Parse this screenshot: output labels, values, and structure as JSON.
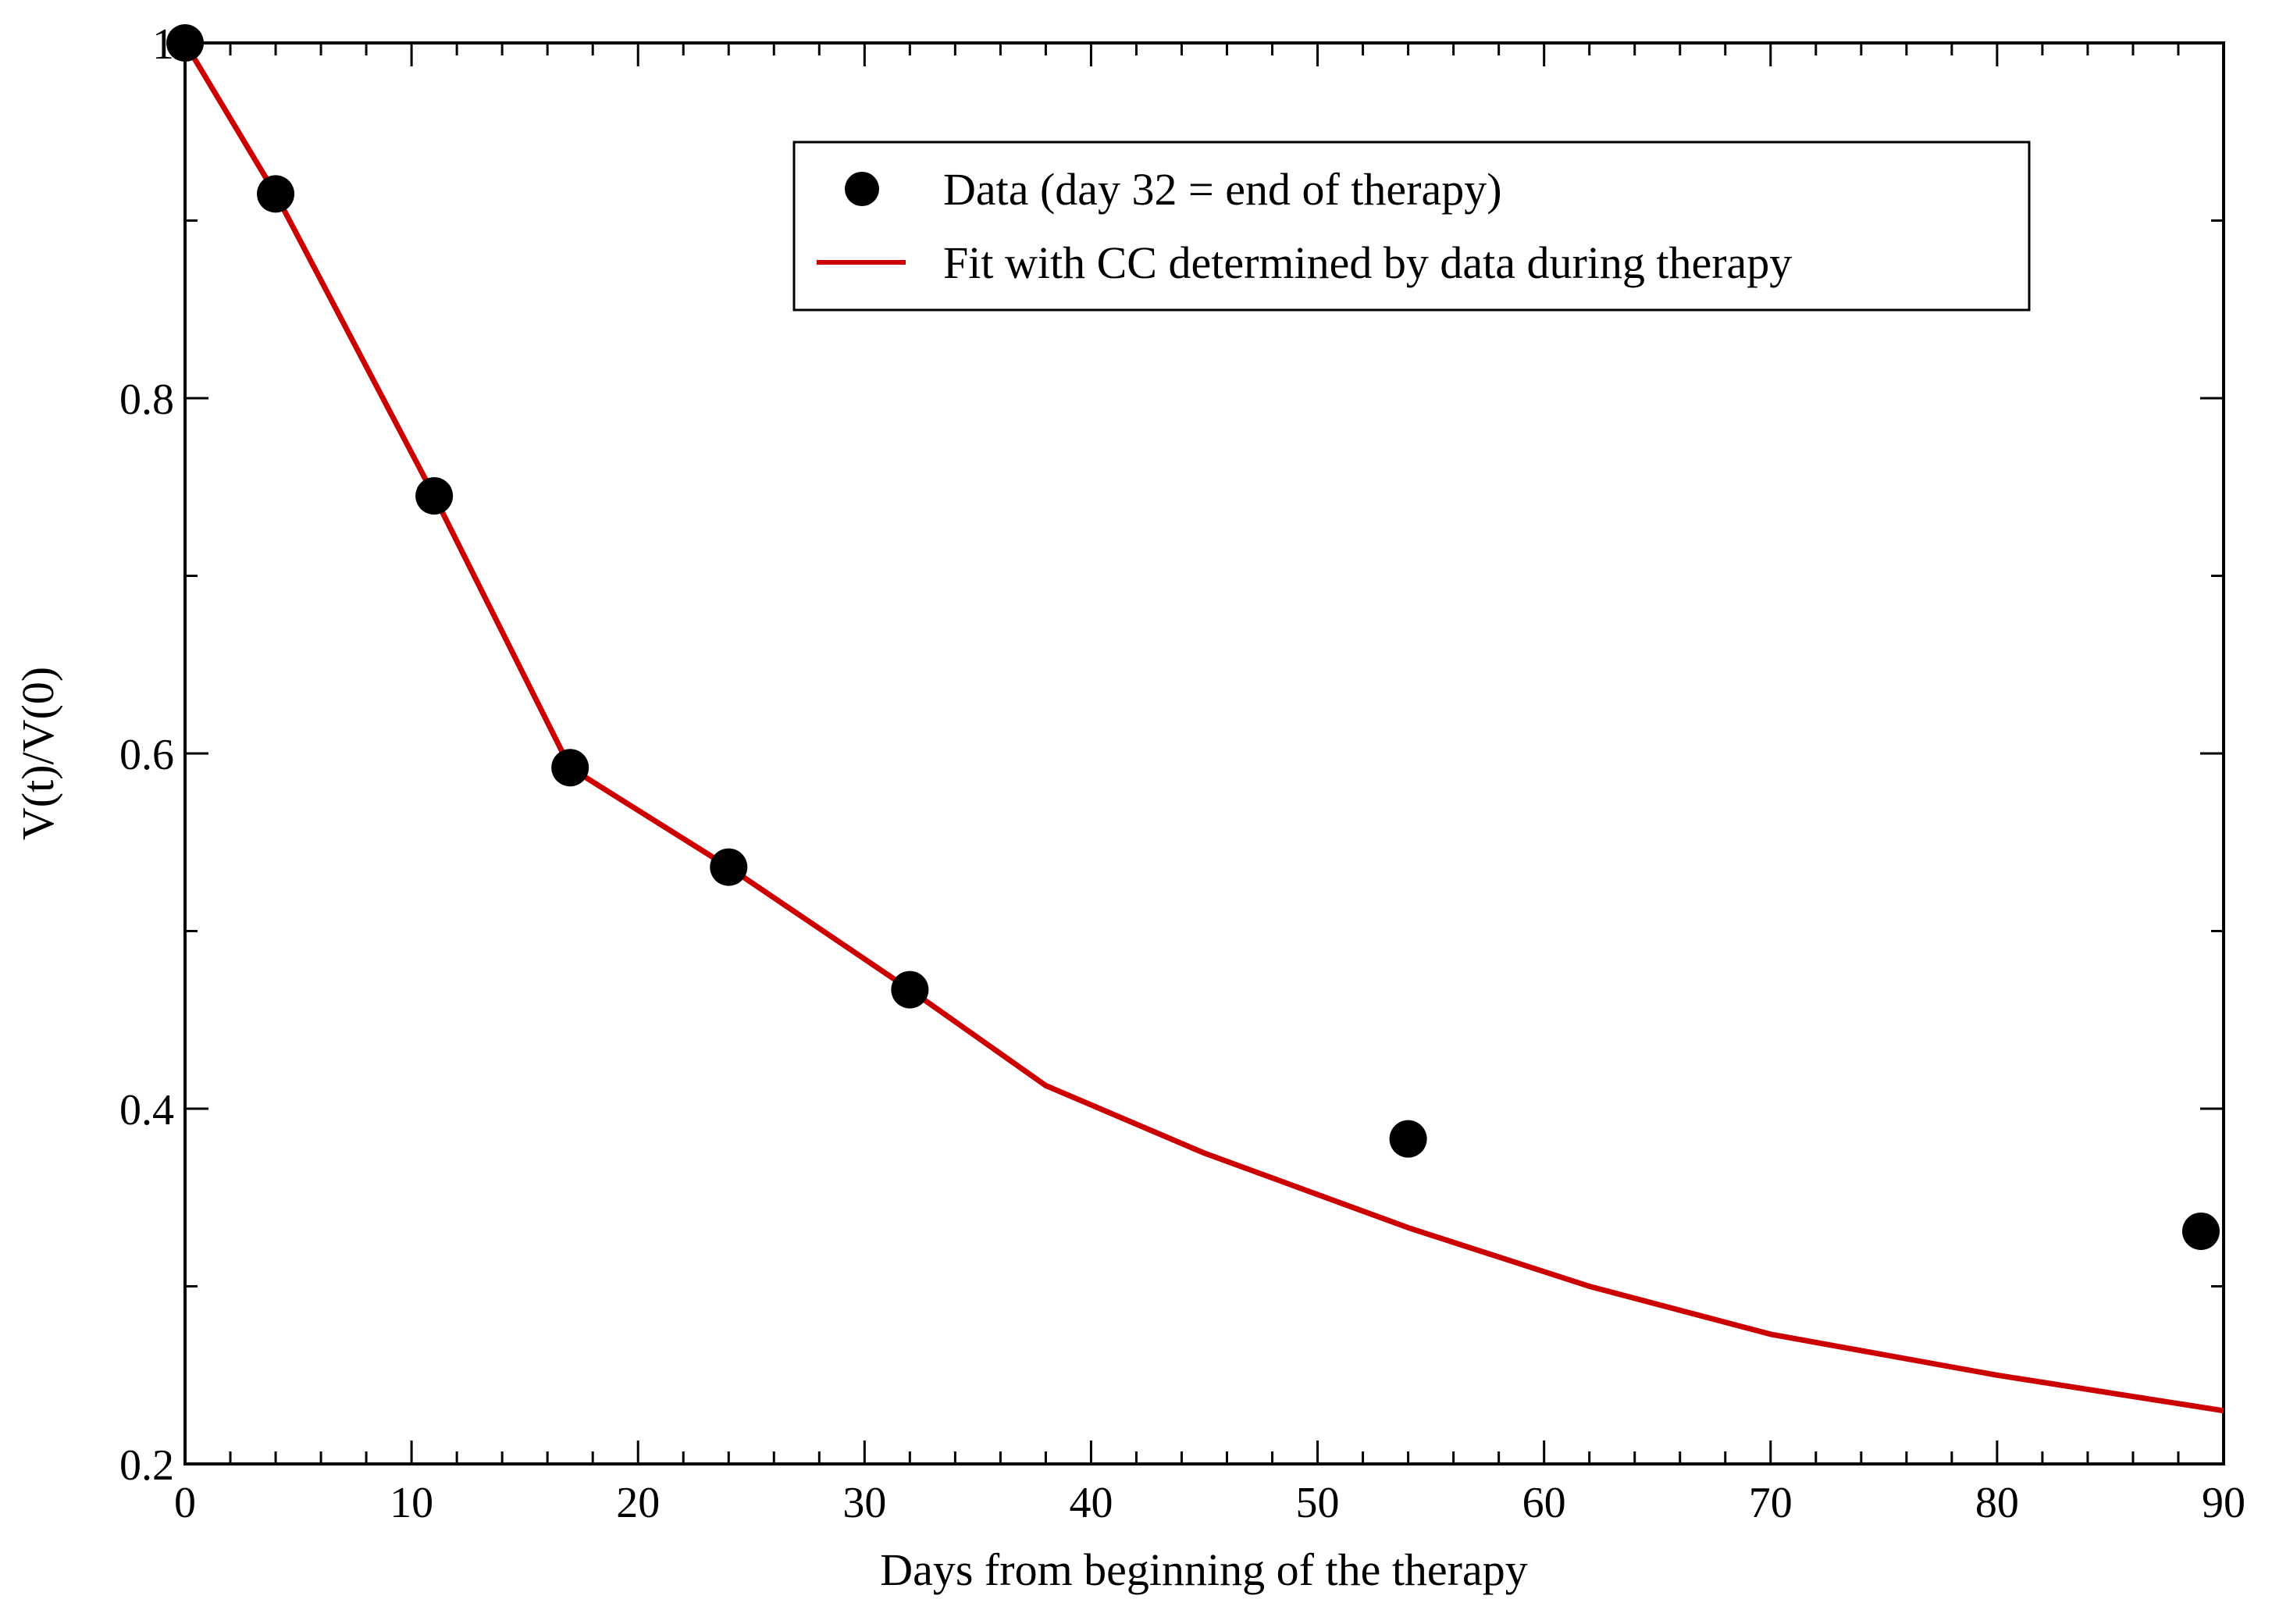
{
  "chart_data": {
    "type": "line",
    "title": "",
    "xlabel": "Days from beginning of the therapy",
    "ylabel": "V(t)/V(0)",
    "xlim": [
      0,
      90
    ],
    "ylim": [
      0.2,
      1.0
    ],
    "x_ticks": [
      "0",
      "10",
      "20",
      "30",
      "40",
      "50",
      "60",
      "70",
      "80",
      "90"
    ],
    "x_tick_values": [
      0,
      10,
      20,
      30,
      40,
      50,
      60,
      70,
      80,
      90
    ],
    "y_ticks": [
      "0.2",
      "0.4",
      "0.6",
      "0.8",
      "1"
    ],
    "y_tick_values": [
      0.2,
      0.4,
      0.6,
      0.8,
      1.0
    ],
    "grid": false,
    "legend_position": "top-right",
    "series": [
      {
        "name": "Data (day 32 = end of therapy)",
        "kind": "scatter",
        "color": "#000000",
        "points": [
          {
            "x": 0,
            "y": 1.0
          },
          {
            "x": 4,
            "y": 0.915
          },
          {
            "x": 11,
            "y": 0.745
          },
          {
            "x": 17,
            "y": 0.592
          },
          {
            "x": 24,
            "y": 0.536
          },
          {
            "x": 32,
            "y": 0.467
          },
          {
            "x": 54,
            "y": 0.383
          },
          {
            "x": 89,
            "y": 0.331
          }
        ]
      },
      {
        "name": "Fit with CC determined by data during therapy",
        "kind": "line",
        "color": "#cc0000",
        "points": [
          {
            "x": 0,
            "y": 1.0
          },
          {
            "x": 4,
            "y": 0.915
          },
          {
            "x": 11,
            "y": 0.745
          },
          {
            "x": 17,
            "y": 0.592
          },
          {
            "x": 24,
            "y": 0.536
          },
          {
            "x": 32,
            "y": 0.467
          },
          {
            "x": 38,
            "y": 0.413
          },
          {
            "x": 45,
            "y": 0.375
          },
          {
            "x": 54,
            "y": 0.333
          },
          {
            "x": 62,
            "y": 0.3
          },
          {
            "x": 70,
            "y": 0.273
          },
          {
            "x": 80,
            "y": 0.25
          },
          {
            "x": 90,
            "y": 0.23
          }
        ]
      }
    ]
  }
}
